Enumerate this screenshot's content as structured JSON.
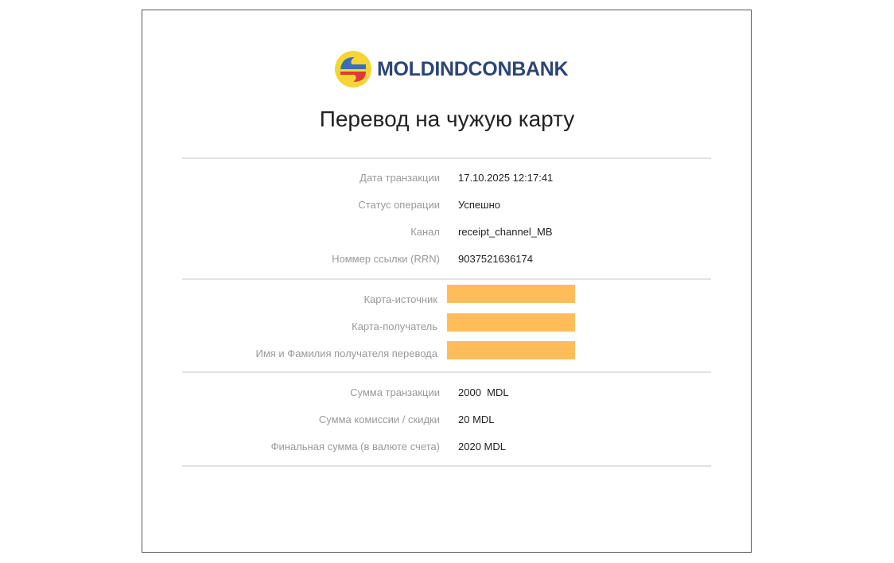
{
  "logo": {
    "text": "MOLDINDCONBANK"
  },
  "title": "Перевод на чужую карту",
  "section1": [
    {
      "label": "Дата транзакции",
      "value": "17.10.2025 12:17:41"
    },
    {
      "label": "Статус операции",
      "value": "Успешно"
    },
    {
      "label": "Канал",
      "value": "receipt_channel_MB"
    },
    {
      "label": "Номмер ссылки (RRN)",
      "value": "9037521636174"
    }
  ],
  "section2": [
    {
      "label": "Карта-источник"
    },
    {
      "label": "Карта-получатель"
    },
    {
      "label": "Имя и Фамилия получателя перевода"
    }
  ],
  "section3": [
    {
      "label": "Сумма транзакции",
      "value": "2000  MDL"
    },
    {
      "label": "Сумма комиссии / скидки",
      "value": "20 MDL"
    },
    {
      "label": "Финальная сумма (в валюте счета)",
      "value": "2020 MDL"
    }
  ],
  "colors": {
    "brand": "#2b4576",
    "redaction": "#ffbd59"
  }
}
